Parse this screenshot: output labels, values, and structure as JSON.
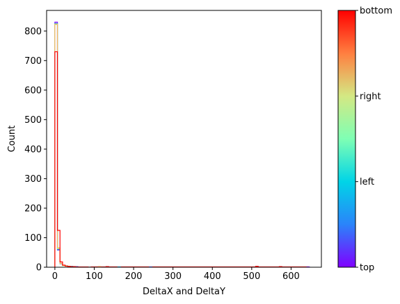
{
  "chart_data": {
    "type": "histogram",
    "xlabel": "DeltaX and DeltaY",
    "ylabel": "Count",
    "xlim": [
      -21,
      677
    ],
    "ylim": [
      0,
      870
    ],
    "x_ticks": [
      0,
      100,
      200,
      300,
      400,
      500,
      600
    ],
    "y_ticks": [
      0,
      100,
      200,
      300,
      400,
      500,
      600,
      700,
      800
    ],
    "bin_edges": [
      0,
      6.5,
      13,
      19.5,
      26,
      32.5,
      39,
      45.5,
      52,
      58.5,
      65,
      71.5,
      78,
      84.5,
      91
    ],
    "series": [
      {
        "color": "#7f00ff",
        "values": [
          830,
          60,
          12,
          6,
          4,
          3,
          2,
          2,
          1,
          1,
          1,
          1,
          1,
          0
        ]
      },
      {
        "color": "#4760fb",
        "values": [
          826,
          58,
          11,
          5,
          4,
          3,
          2,
          2,
          2,
          1,
          1,
          1,
          0,
          0
        ]
      },
      {
        "color": "#00b5eb",
        "values": [
          825,
          62,
          13,
          6,
          4,
          3,
          3,
          2,
          1,
          1,
          1,
          1,
          0,
          0
        ]
      },
      {
        "color": "#40ffc0",
        "values": [
          822,
          64,
          12,
          6,
          5,
          3,
          2,
          2,
          1,
          1,
          1,
          0,
          0,
          0
        ]
      },
      {
        "color": "#c0ff80",
        "values": [
          824,
          63,
          12,
          5,
          4,
          3,
          2,
          1,
          1,
          1,
          1,
          0,
          0,
          0
        ]
      },
      {
        "color": "#ffb462",
        "values": [
          823,
          66,
          13,
          6,
          4,
          3,
          2,
          2,
          1,
          1,
          0,
          0,
          0,
          0
        ]
      },
      {
        "color": "#ff0000",
        "values": [
          730,
          125,
          18,
          7,
          4,
          3,
          2,
          2,
          1,
          1,
          1,
          1,
          1,
          0
        ]
      }
    ],
    "tail_marks": [
      {
        "x": 110,
        "y": 2,
        "color": "#ff8040"
      },
      {
        "x": 130,
        "y": 2,
        "color": "#ff0000"
      },
      {
        "x": 160,
        "y": 1,
        "color": "#00b5eb"
      },
      {
        "x": 240,
        "y": 1,
        "color": "#4760fb"
      },
      {
        "x": 510,
        "y": 3,
        "color": "#ff0000"
      },
      {
        "x": 570,
        "y": 2,
        "color": "#ff0000"
      },
      {
        "x": 640,
        "y": 1,
        "color": "#7f00ff"
      }
    ],
    "colorbar": {
      "colormap": "rainbow",
      "tick_labels": [
        "top",
        "left",
        "right",
        "bottom"
      ]
    }
  }
}
